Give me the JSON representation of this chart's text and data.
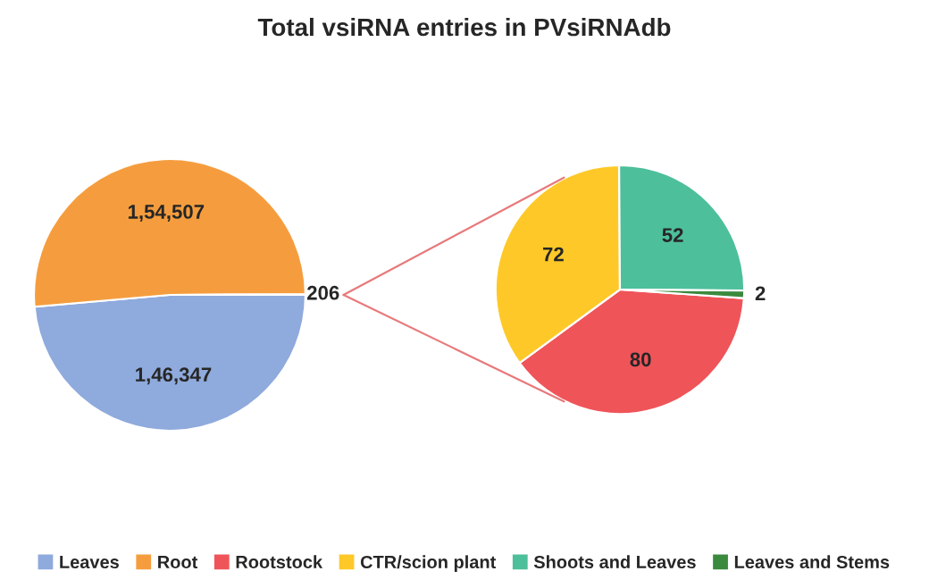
{
  "chart_data": [
    {
      "type": "pie",
      "title": "Total vsiRNA entries in PVsiRNAdb",
      "categories": [
        "Leaves",
        "Root",
        null
      ],
      "values": [
        146347,
        154507,
        206
      ],
      "colors": [
        "#8faadc",
        "#f59d3e",
        "#ffffff"
      ],
      "value_labels": [
        "1,46,347",
        "1,54,507",
        "206"
      ],
      "legend": "bottom"
    },
    {
      "type": "pie",
      "categories": [
        "Rootstock",
        "CTR/scion plant",
        "Shoots and Leaves",
        "Leaves and Stems"
      ],
      "values": [
        80,
        72,
        52,
        2
      ],
      "colors": [
        "#ef5459",
        "#fec928",
        "#4dbf9b",
        "#3b8a3e"
      ],
      "data_labels": true,
      "legend": "bottom"
    }
  ]
}
